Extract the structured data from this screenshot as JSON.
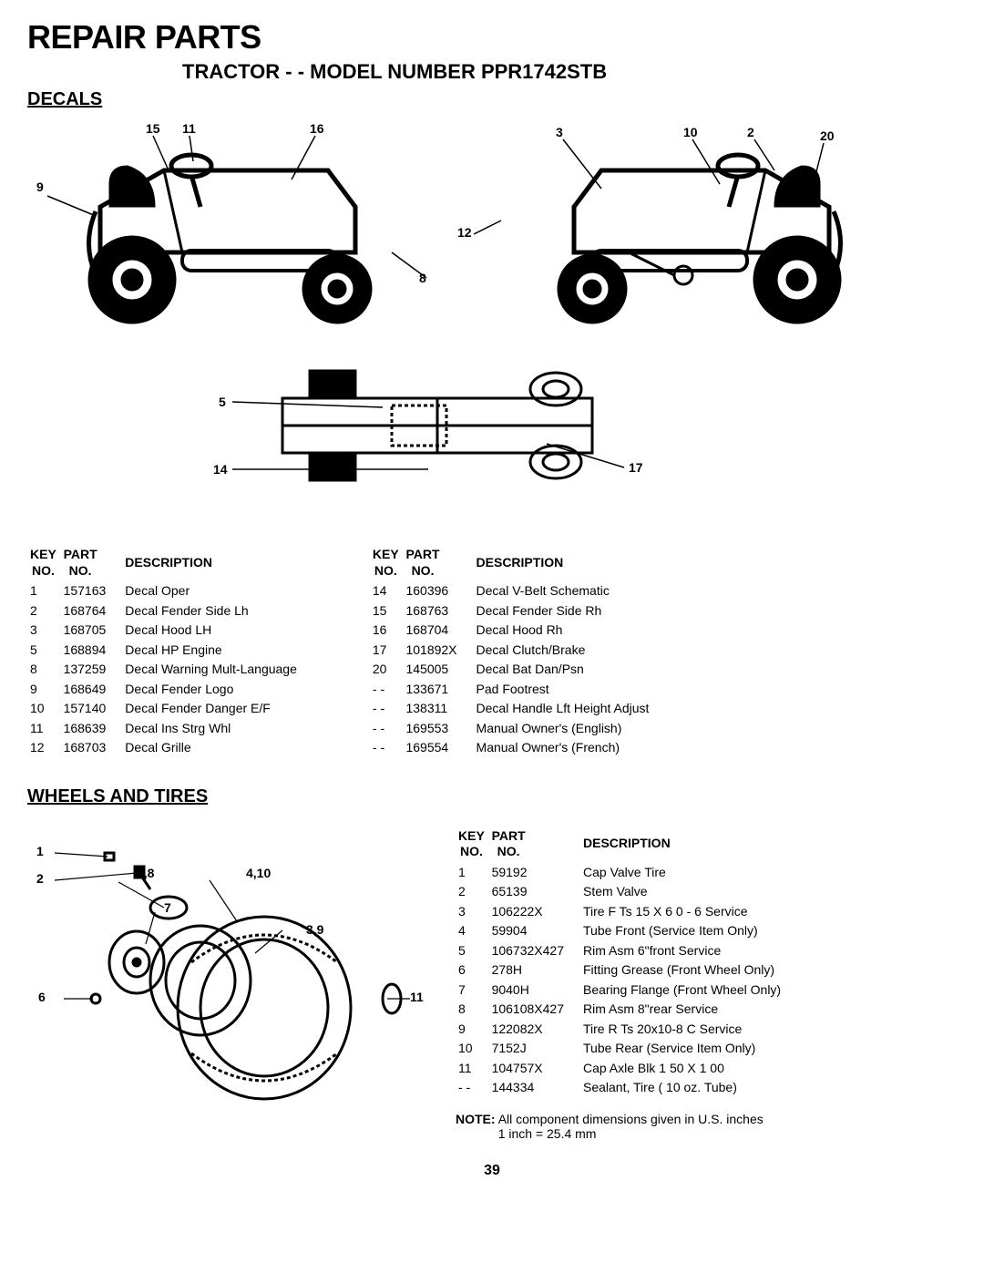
{
  "header": {
    "title": "REPAIR PARTS",
    "subtitle": "TRACTOR - - MODEL NUMBER PPR1742STB"
  },
  "decals": {
    "heading": "DECALS",
    "callouts_left": [
      "15",
      "11",
      "16",
      "9",
      "12",
      "8",
      "5",
      "14"
    ],
    "callouts_right": [
      "3",
      "10",
      "2",
      "20",
      "17"
    ],
    "table_headers": {
      "key": "KEY\nNO.",
      "part": "PART\nNO.",
      "desc": "DESCRIPTION"
    },
    "left_table": [
      {
        "key": "1",
        "part": "157163",
        "desc": "Decal Oper"
      },
      {
        "key": "2",
        "part": "168764",
        "desc": "Decal Fender Side Lh"
      },
      {
        "key": "3",
        "part": "168705",
        "desc": "Decal Hood LH"
      },
      {
        "key": "5",
        "part": "168894",
        "desc": "Decal HP Engine"
      },
      {
        "key": "8",
        "part": "137259",
        "desc": "Decal Warning Mult-Language"
      },
      {
        "key": "9",
        "part": "168649",
        "desc": "Decal Fender Logo"
      },
      {
        "key": "10",
        "part": "157140",
        "desc": "Decal Fender Danger E/F"
      },
      {
        "key": "11",
        "part": "168639",
        "desc": "Decal Ins Strg Whl"
      },
      {
        "key": "12",
        "part": "168703",
        "desc": "Decal Grille"
      }
    ],
    "right_table": [
      {
        "key": "14",
        "part": "160396",
        "desc": "Decal V-Belt Schematic"
      },
      {
        "key": "15",
        "part": "168763",
        "desc": "Decal Fender Side Rh"
      },
      {
        "key": "16",
        "part": "168704",
        "desc": "Decal Hood Rh"
      },
      {
        "key": "17",
        "part": "101892X",
        "desc": "Decal Clutch/Brake"
      },
      {
        "key": "20",
        "part": "145005",
        "desc": "Decal Bat Dan/Psn"
      },
      {
        "key": "- -",
        "part": "133671",
        "desc": "Pad Footrest"
      },
      {
        "key": "- -",
        "part": "138311",
        "desc": "Decal Handle Lft Height Adjust"
      },
      {
        "key": "- -",
        "part": "169553",
        "desc": "Manual Owner's (English)"
      },
      {
        "key": "- -",
        "part": "169554",
        "desc": "Manual Owner's (French)"
      }
    ]
  },
  "wheels": {
    "heading": "WHEELS AND TIRES",
    "callouts": [
      "1",
      "2",
      "5,8",
      "4,10",
      "7",
      "3,9",
      "6",
      "11"
    ],
    "table": [
      {
        "key": "1",
        "part": "59192",
        "desc": "Cap Valve Tire"
      },
      {
        "key": "2",
        "part": "65139",
        "desc": "Stem Valve"
      },
      {
        "key": "3",
        "part": "106222X",
        "desc": "Tire F Ts 15 X 6 0 - 6 Service"
      },
      {
        "key": "4",
        "part": "59904",
        "desc": "Tube Front (Service Item Only)"
      },
      {
        "key": "5",
        "part": "106732X427",
        "desc": "Rim Asm 6\"front Service"
      },
      {
        "key": "6",
        "part": "278H",
        "desc": "Fitting Grease (Front Wheel Only)"
      },
      {
        "key": "7",
        "part": "9040H",
        "desc": "Bearing Flange (Front Wheel Only)"
      },
      {
        "key": "8",
        "part": "106108X427",
        "desc": "Rim Asm 8\"rear Service"
      },
      {
        "key": "9",
        "part": "122082X",
        "desc": "Tire R Ts 20x10-8 C Service"
      },
      {
        "key": "10",
        "part": "7152J",
        "desc": "Tube Rear (Service Item Only)"
      },
      {
        "key": "11",
        "part": "104757X",
        "desc": "Cap Axle Blk 1 50 X 1 00"
      },
      {
        "key": "- -",
        "part": "144334",
        "desc": "Sealant, Tire ( 10 oz. Tube)"
      }
    ]
  },
  "note": {
    "label": "NOTE:",
    "line1": "All component dimensions given in U.S. inches",
    "line2": "1 inch = 25.4 mm"
  },
  "page": "39",
  "style": {
    "stroke": "#000000",
    "fill_black": "#000000",
    "fill_white": "#ffffff",
    "stroke_width_heavy": 6,
    "stroke_width_med": 3,
    "stroke_width_thin": 1.5,
    "font_title": 36,
    "font_sub": 22,
    "font_heading": 20,
    "font_table": 14
  }
}
